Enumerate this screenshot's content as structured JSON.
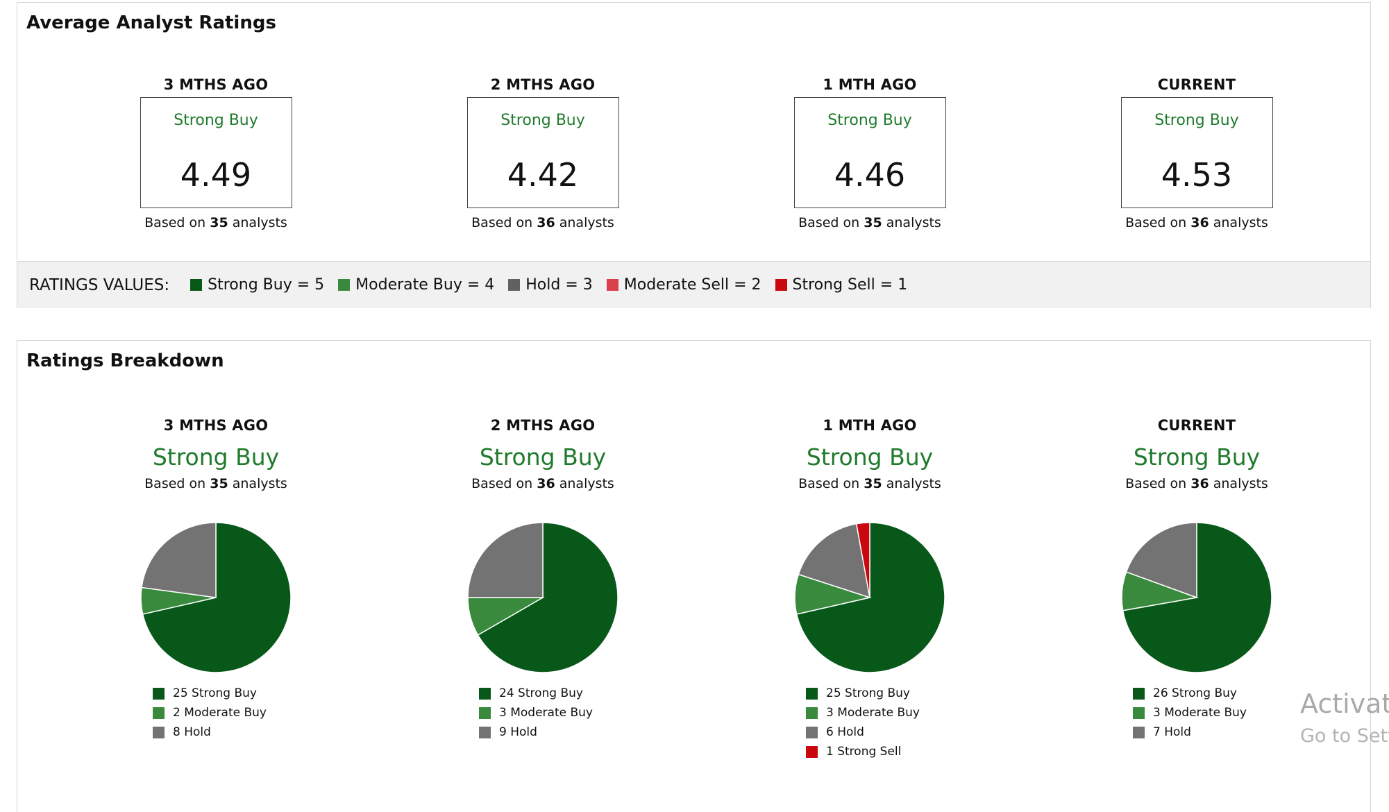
{
  "average_section": {
    "title": "Average Analyst Ratings",
    "periods": [
      {
        "label": "3 MTHS AGO",
        "rating": "Strong Buy",
        "score": "4.49",
        "based_prefix": "Based on",
        "analysts": "35",
        "based_suffix": "analysts"
      },
      {
        "label": "2 MTHS AGO",
        "rating": "Strong Buy",
        "score": "4.42",
        "based_prefix": "Based on",
        "analysts": "36",
        "based_suffix": "analysts"
      },
      {
        "label": "1 MTH AGO",
        "rating": "Strong Buy",
        "score": "4.46",
        "based_prefix": "Based on",
        "analysts": "35",
        "based_suffix": "analysts"
      },
      {
        "label": "CURRENT",
        "rating": "Strong Buy",
        "score": "4.53",
        "based_prefix": "Based on",
        "analysts": "36",
        "based_suffix": "analysts"
      }
    ],
    "ratings_values": {
      "label": "RATINGS VALUES:",
      "items": [
        {
          "text": "Strong Buy = 5",
          "color": "#08581a"
        },
        {
          "text": "Moderate Buy = 4",
          "color": "#3a8a3d"
        },
        {
          "text": "Hold = 3",
          "color": "#616161"
        },
        {
          "text": "Moderate Sell = 2",
          "color": "#d9404a"
        },
        {
          "text": "Strong Sell = 1",
          "color": "#c8080e"
        }
      ]
    }
  },
  "breakdown_section": {
    "title": "Ratings Breakdown",
    "periods": [
      {
        "label": "3 MTHS AGO",
        "rating": "Strong Buy",
        "based_prefix": "Based on",
        "analysts": "35",
        "based_suffix": "analysts"
      },
      {
        "label": "2 MTHS AGO",
        "rating": "Strong Buy",
        "based_prefix": "Based on",
        "analysts": "36",
        "based_suffix": "analysts"
      },
      {
        "label": "1 MTH AGO",
        "rating": "Strong Buy",
        "based_prefix": "Based on",
        "analysts": "35",
        "based_suffix": "analysts"
      },
      {
        "label": "CURRENT",
        "rating": "Strong Buy",
        "based_prefix": "Based on",
        "analysts": "36",
        "based_suffix": "analysts"
      }
    ]
  },
  "colors": {
    "strong_buy": "#08581a",
    "moderate_buy": "#3a8a3d",
    "hold": "#737373",
    "moderate_sell": "#d9404a",
    "strong_sell": "#c8080e",
    "rating_text": "#1f7a2c"
  },
  "chart_data": [
    {
      "type": "pie",
      "title": "3 MTHS AGO",
      "slices": [
        {
          "label": "25 Strong Buy",
          "value": 25,
          "color": "#08581a"
        },
        {
          "label": "2 Moderate Buy",
          "value": 2,
          "color": "#3a8a3d"
        },
        {
          "label": "8 Hold",
          "value": 8,
          "color": "#737373"
        }
      ]
    },
    {
      "type": "pie",
      "title": "2 MTHS AGO",
      "slices": [
        {
          "label": "24 Strong Buy",
          "value": 24,
          "color": "#08581a"
        },
        {
          "label": "3 Moderate Buy",
          "value": 3,
          "color": "#3a8a3d"
        },
        {
          "label": "9 Hold",
          "value": 9,
          "color": "#737373"
        }
      ]
    },
    {
      "type": "pie",
      "title": "1 MTH AGO",
      "slices": [
        {
          "label": "25 Strong Buy",
          "value": 25,
          "color": "#08581a"
        },
        {
          "label": "3 Moderate Buy",
          "value": 3,
          "color": "#3a8a3d"
        },
        {
          "label": "6 Hold",
          "value": 6,
          "color": "#737373"
        },
        {
          "label": "1 Strong Sell",
          "value": 1,
          "color": "#c8080e"
        }
      ]
    },
    {
      "type": "pie",
      "title": "CURRENT",
      "slices": [
        {
          "label": "26 Strong Buy",
          "value": 26,
          "color": "#08581a"
        },
        {
          "label": "3 Moderate Buy",
          "value": 3,
          "color": "#3a8a3d"
        },
        {
          "label": "7 Hold",
          "value": 7,
          "color": "#737373"
        }
      ]
    }
  ],
  "watermark": {
    "line1": "Activate",
    "line2": "Go to Sett"
  }
}
